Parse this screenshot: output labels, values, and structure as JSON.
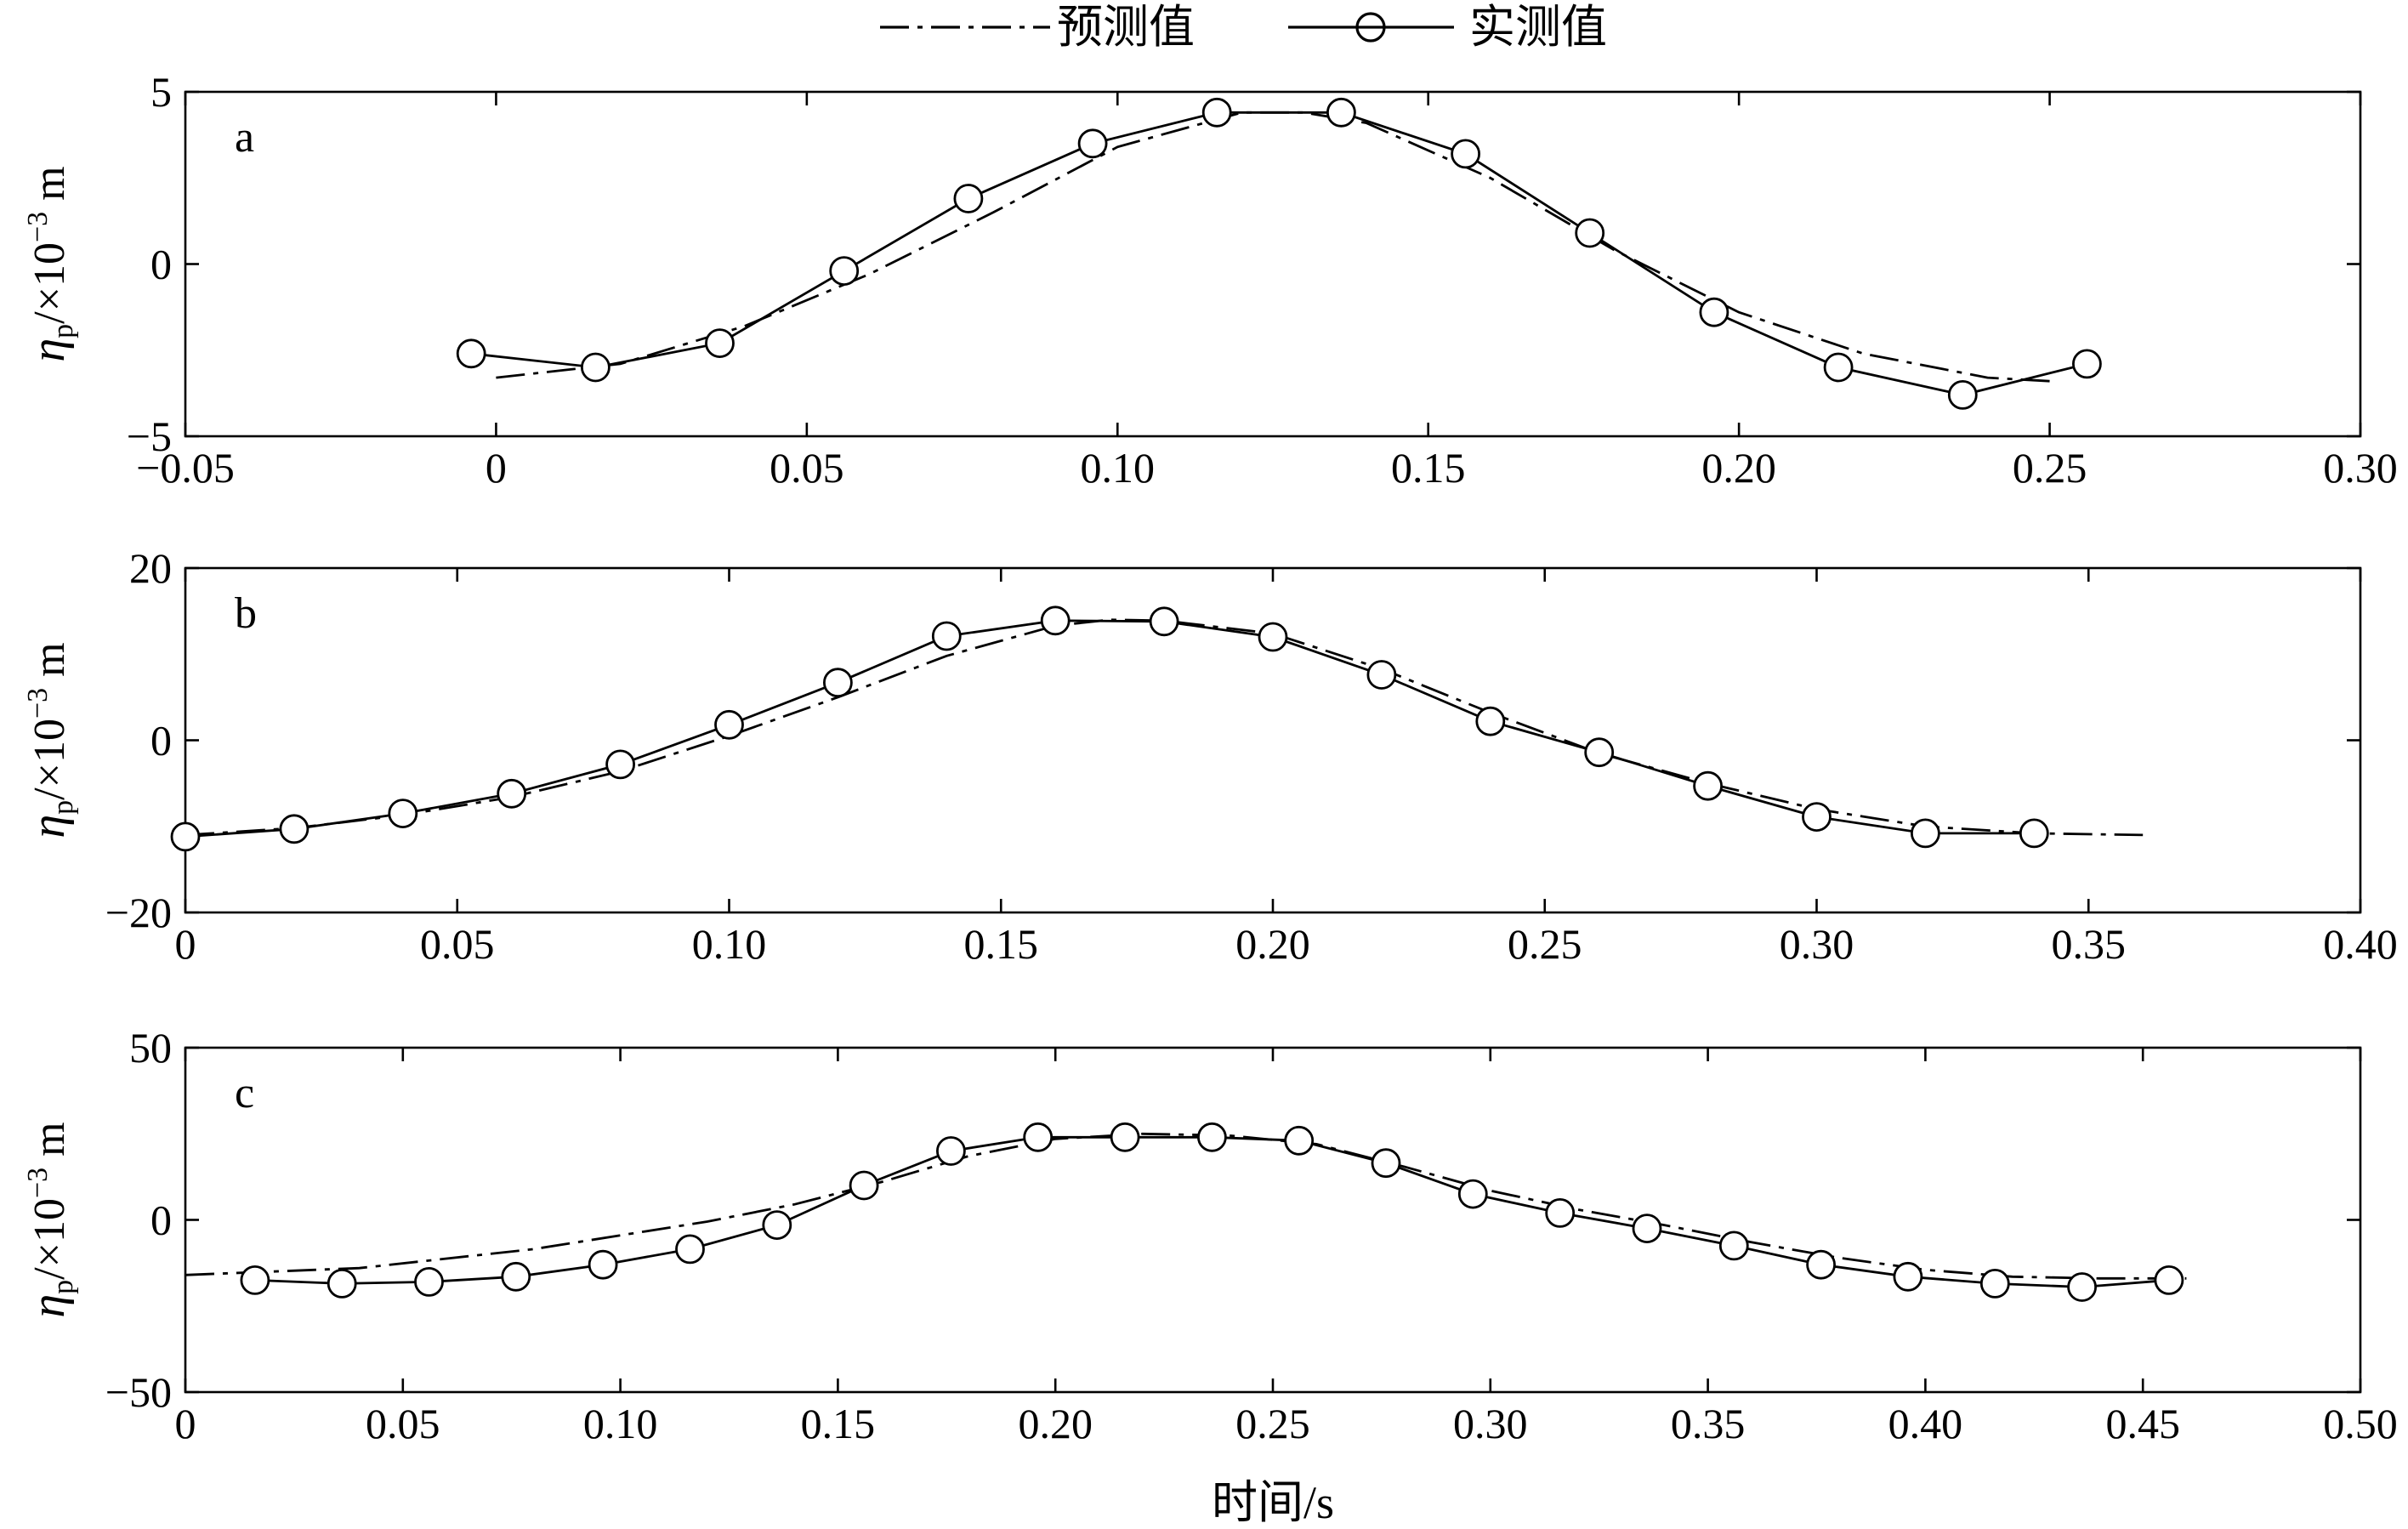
{
  "legend": {
    "predicted": "预测值",
    "measured": "实测值"
  },
  "xlabel": "时间/s",
  "ylabel": {
    "eta": "η",
    "sub": "p",
    "unit_prefix": "/×10",
    "exponent": "−3",
    "unit": " m"
  },
  "chart_data": [
    {
      "type": "line",
      "panel": "a",
      "xlim": [
        -0.05,
        0.3
      ],
      "ylim": [
        -5,
        5
      ],
      "xticks": [
        -0.05,
        0,
        0.05,
        0.1,
        0.15,
        0.2,
        0.25,
        0.3
      ],
      "xtick_labels": [
        "−0.05",
        "0",
        "0.05",
        "0.10",
        "0.15",
        "0.20",
        "0.25",
        "0.30"
      ],
      "yticks": [
        -5,
        0,
        5
      ],
      "ytick_labels": [
        "−5",
        "0",
        "5"
      ],
      "series": [
        {
          "name": "预测值",
          "style": "dashdot",
          "x": [
            0.0,
            0.02,
            0.04,
            0.06,
            0.08,
            0.1,
            0.12,
            0.13,
            0.14,
            0.16,
            0.18,
            0.2,
            0.22,
            0.24,
            0.25
          ],
          "y": [
            -3.3,
            -2.9,
            -1.8,
            -0.3,
            1.5,
            3.4,
            4.4,
            4.4,
            4.1,
            2.5,
            0.4,
            -1.4,
            -2.6,
            -3.3,
            -3.4
          ]
        },
        {
          "name": "实测值",
          "style": "solid-circle",
          "x": [
            -0.004,
            0.016,
            0.036,
            0.056,
            0.076,
            0.096,
            0.116,
            0.136,
            0.156,
            0.176,
            0.196,
            0.216,
            0.236,
            0.256
          ],
          "y": [
            -2.6,
            -3.0,
            -2.3,
            -0.2,
            1.9,
            3.5,
            4.4,
            4.4,
            3.2,
            0.9,
            -1.4,
            -3.0,
            -3.8,
            -2.9
          ]
        }
      ]
    },
    {
      "type": "line",
      "panel": "b",
      "xlim": [
        0,
        0.4
      ],
      "ylim": [
        -20,
        20
      ],
      "xticks": [
        0,
        0.05,
        0.1,
        0.15,
        0.2,
        0.25,
        0.3,
        0.35,
        0.4
      ],
      "xtick_labels": [
        "0",
        "0.05",
        "0.10",
        "0.15",
        "0.20",
        "0.25",
        "0.30",
        "0.35",
        "0.40"
      ],
      "yticks": [
        -20,
        0,
        20
      ],
      "ytick_labels": [
        "−20",
        "0",
        "20"
      ],
      "series": [
        {
          "name": "预测值",
          "style": "dashdot",
          "x": [
            0.0,
            0.02,
            0.04,
            0.06,
            0.08,
            0.1,
            0.12,
            0.14,
            0.16,
            0.17,
            0.18,
            0.2,
            0.22,
            0.24,
            0.26,
            0.28,
            0.3,
            0.32,
            0.34,
            0.36
          ],
          "y": [
            -11.0,
            -10.2,
            -8.7,
            -6.6,
            -3.6,
            0.5,
            5.0,
            9.8,
            13.3,
            14.0,
            13.9,
            12.4,
            8.3,
            3.2,
            -1.5,
            -5.0,
            -8.0,
            -10.0,
            -10.8,
            -11.0
          ]
        },
        {
          "name": "实测值",
          "style": "solid-circle",
          "x": [
            0.0,
            0.02,
            0.04,
            0.06,
            0.08,
            0.1,
            0.12,
            0.14,
            0.16,
            0.18,
            0.2,
            0.22,
            0.24,
            0.26,
            0.28,
            0.3,
            0.32,
            0.34
          ],
          "y": [
            -11.2,
            -10.3,
            -8.5,
            -6.2,
            -2.8,
            1.8,
            6.7,
            12.1,
            13.9,
            13.8,
            12.0,
            7.6,
            2.2,
            -1.4,
            -5.3,
            -8.9,
            -10.8,
            -10.8
          ]
        }
      ]
    },
    {
      "type": "line",
      "panel": "c",
      "xlim": [
        0,
        0.5
      ],
      "ylim": [
        -50,
        50
      ],
      "xticks": [
        0,
        0.05,
        0.1,
        0.15,
        0.2,
        0.25,
        0.3,
        0.35,
        0.4,
        0.45,
        0.5
      ],
      "xtick_labels": [
        "0",
        "0.05",
        "0.10",
        "0.15",
        "0.20",
        "0.25",
        "0.30",
        "0.35",
        "0.40",
        "0.45",
        "0.50"
      ],
      "yticks": [
        -50,
        0,
        50
      ],
      "ytick_labels": [
        "−50",
        "0",
        "50"
      ],
      "series": [
        {
          "name": "预测值",
          "style": "dashdot",
          "x": [
            0.0,
            0.04,
            0.08,
            0.1,
            0.12,
            0.14,
            0.16,
            0.18,
            0.2,
            0.22,
            0.24,
            0.26,
            0.28,
            0.3,
            0.32,
            0.34,
            0.36,
            0.38,
            0.4,
            0.42,
            0.44,
            0.46
          ],
          "y": [
            -16.0,
            -14.0,
            -8.5,
            -4.5,
            -0.5,
            4.5,
            11.0,
            18.5,
            23.5,
            25.0,
            24.5,
            22.0,
            15.5,
            8.5,
            3.0,
            -1.5,
            -6.5,
            -11.0,
            -14.5,
            -16.5,
            -17.0,
            -17.0
          ]
        },
        {
          "name": "实测值",
          "style": "solid-circle",
          "x": [
            0.016,
            0.036,
            0.056,
            0.076,
            0.096,
            0.116,
            0.136,
            0.156,
            0.176,
            0.196,
            0.216,
            0.236,
            0.256,
            0.276,
            0.296,
            0.316,
            0.336,
            0.356,
            0.376,
            0.396,
            0.416,
            0.436,
            0.456
          ],
          "y": [
            -17.5,
            -18.5,
            -18.0,
            -16.5,
            -13.0,
            -8.5,
            -1.5,
            10.0,
            20.0,
            24.0,
            24.0,
            24.0,
            23.0,
            16.5,
            7.5,
            2.0,
            -2.5,
            -7.5,
            -13.0,
            -16.5,
            -18.5,
            -19.5,
            -17.5
          ]
        }
      ]
    }
  ]
}
